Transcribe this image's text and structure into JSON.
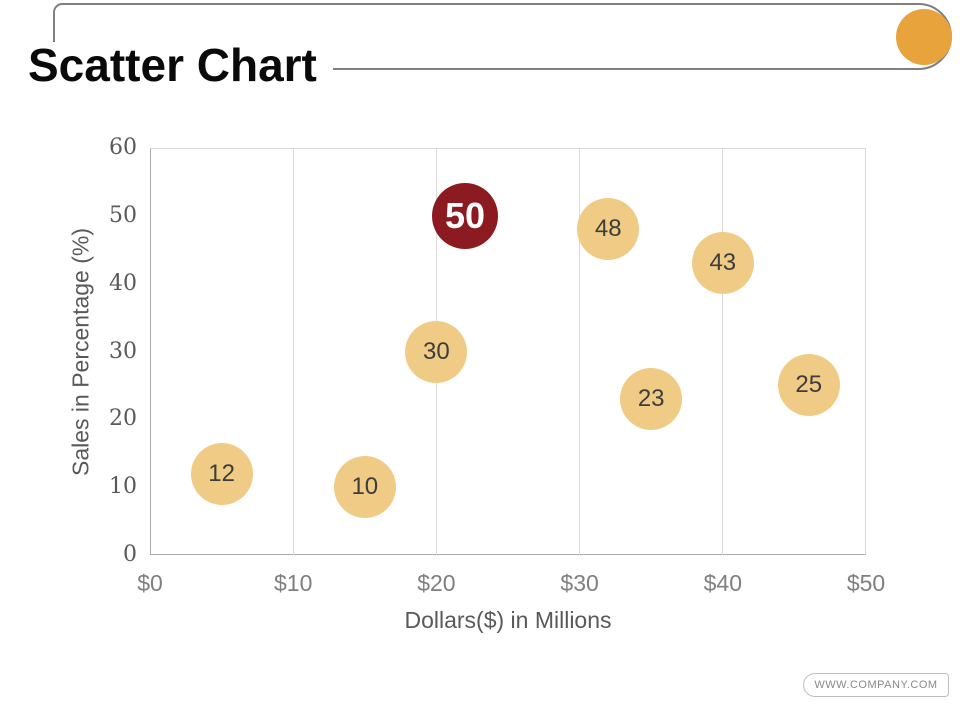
{
  "slide": {
    "title": "Scatter Chart",
    "footer_url": "WWW.COMPANY.COM"
  },
  "colors": {
    "accent_orange": "#e9a33c",
    "header_border": "#7f7f7f",
    "bubble_fill": "#f0cb85",
    "bubble_label": "#3d3d3d",
    "bubble_highlight_fill": "#8b1b21",
    "bubble_highlight_label": "#ffffff",
    "grid_line": "#d9d9d9",
    "axis_line": "#ababab",
    "x_tick_color": "#7f7f7f",
    "y_tick_color": "#595959",
    "axis_title_color": "#595959"
  },
  "chart_data": {
    "type": "scatter",
    "title": "",
    "xlabel": "Dollars($) in Millions",
    "ylabel": "Sales in Percentage (%)",
    "xlim": [
      0,
      50
    ],
    "ylim": [
      0,
      60
    ],
    "grid": "vertical-only",
    "legend": "none",
    "x_ticks": [
      {
        "value": 0,
        "label": "$0"
      },
      {
        "value": 10,
        "label": "$10"
      },
      {
        "value": 20,
        "label": "$20"
      },
      {
        "value": 30,
        "label": "$30"
      },
      {
        "value": 40,
        "label": "$40"
      },
      {
        "value": 50,
        "label": "$50"
      }
    ],
    "y_ticks": [
      {
        "value": 0,
        "label": "0"
      },
      {
        "value": 10,
        "label": "10"
      },
      {
        "value": 20,
        "label": "20"
      },
      {
        "value": 30,
        "label": "30"
      },
      {
        "value": 40,
        "label": "40"
      },
      {
        "value": 50,
        "label": "50"
      },
      {
        "value": 60,
        "label": "60"
      }
    ],
    "points": [
      {
        "x": 5,
        "y": 12,
        "label": "12",
        "highlight": false
      },
      {
        "x": 15,
        "y": 10,
        "label": "10",
        "highlight": false
      },
      {
        "x": 20,
        "y": 30,
        "label": "30",
        "highlight": false
      },
      {
        "x": 22,
        "y": 50,
        "label": "50",
        "highlight": true
      },
      {
        "x": 32,
        "y": 48,
        "label": "48",
        "highlight": false
      },
      {
        "x": 35,
        "y": 23,
        "label": "23",
        "highlight": false
      },
      {
        "x": 40,
        "y": 43,
        "label": "43",
        "highlight": false
      },
      {
        "x": 46,
        "y": 25,
        "label": "25",
        "highlight": false
      }
    ]
  }
}
